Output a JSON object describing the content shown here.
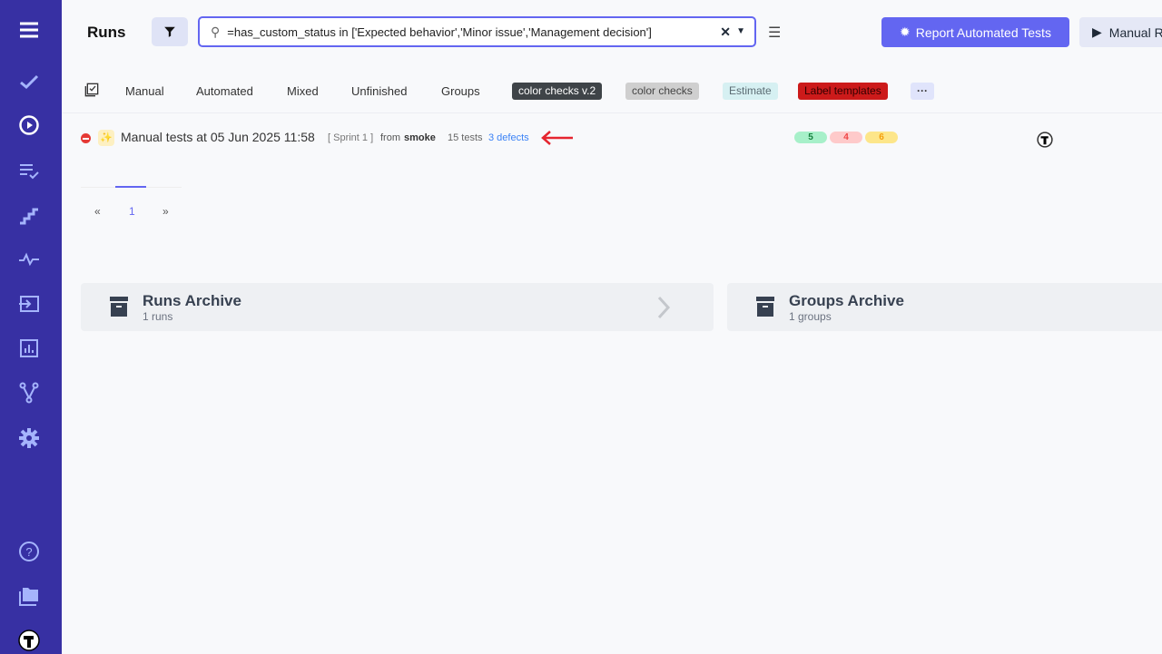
{
  "sidebar": {
    "items": [
      "menu",
      "checks",
      "runs",
      "plans",
      "steps",
      "pulse",
      "import",
      "analytics",
      "branches",
      "settings",
      "help",
      "projects",
      "testomatio-logo"
    ],
    "color": "#3730a3"
  },
  "header": {
    "title": "Runs",
    "search": {
      "value": "=has_custom_status in ['Expected behavior','Minor issue','Management decision']"
    },
    "report_label": "Report Automated Tests",
    "manual_label": "Manual R"
  },
  "tabs": [
    "Manual",
    "Automated",
    "Mixed",
    "Unfinished",
    "Groups"
  ],
  "labels": [
    {
      "text": "color checks v.2",
      "bg": "#3f4448",
      "fg": "#ffffff"
    },
    {
      "text": "color checks",
      "bg": "#cfcfcf",
      "fg": "#444444"
    },
    {
      "text": "Estimate",
      "bg": "#d6f0f2",
      "fg": "#5b6b73"
    },
    {
      "text": "Label templates",
      "bg": "#cc1a1a",
      "fg": "#330000"
    }
  ],
  "more_label": "···",
  "run": {
    "title": "Manual tests at 05 Jun 2025 11:58",
    "sprint": "[ Sprint 1 ]",
    "from": "from",
    "source": "smoke",
    "tests": "15 tests",
    "defects": "3 defects",
    "passed": "5",
    "failed": "4",
    "skipped": "6"
  },
  "pagination": {
    "prev": "«",
    "page": "1",
    "next": "»"
  },
  "archives": [
    {
      "title": "Runs Archive",
      "sub": "1 runs"
    },
    {
      "title": "Groups Archive",
      "sub": "1 groups"
    }
  ]
}
